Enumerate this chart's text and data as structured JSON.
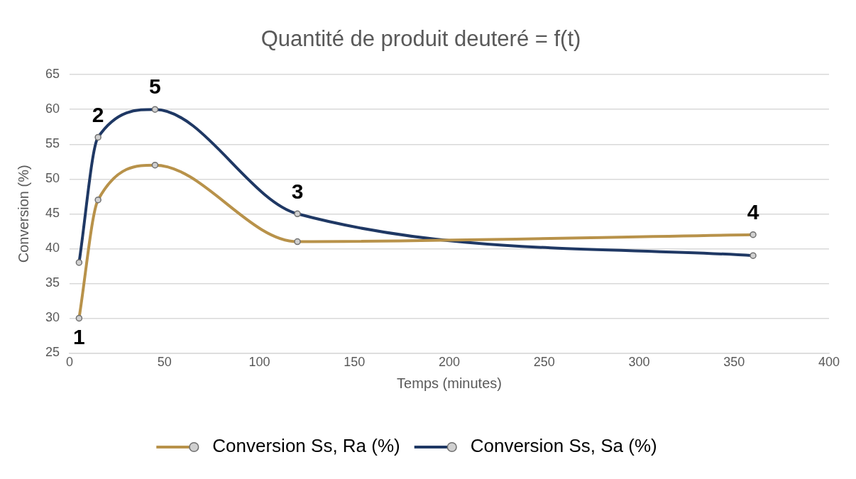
{
  "chart_data": {
    "type": "line",
    "title": "Quantité de produit deuteré = f(t)",
    "xlabel": "Temps (minutes)",
    "ylabel": "Conversion (%)",
    "x": [
      5,
      15,
      45,
      120,
      360
    ],
    "series": [
      {
        "name": "Conversion Ss, Ra (%)",
        "color": "#b8924a",
        "values": [
          30,
          47,
          52,
          41,
          42
        ]
      },
      {
        "name": "Conversion Ss, Sa (%)",
        "color": "#1f3864",
        "values": [
          38,
          56,
          60,
          45,
          39
        ]
      }
    ],
    "xlim": [
      0,
      400
    ],
    "xticks": [
      0,
      50,
      100,
      150,
      200,
      250,
      300,
      350,
      400
    ],
    "ylim": [
      25,
      65
    ],
    "yticks": [
      25,
      30,
      35,
      40,
      45,
      50,
      55,
      60,
      65
    ],
    "grid": "y",
    "legend": "bottom",
    "marker": "circle",
    "line_style": "solid",
    "annotations": [
      {
        "text": "1",
        "x": 5,
        "y": 30
      },
      {
        "text": "2",
        "x": 15,
        "y": 56
      },
      {
        "text": "5",
        "x": 45,
        "y": 60
      },
      {
        "text": "3",
        "x": 120,
        "y": 45
      },
      {
        "text": "4",
        "x": 360,
        "y": 42
      }
    ]
  }
}
